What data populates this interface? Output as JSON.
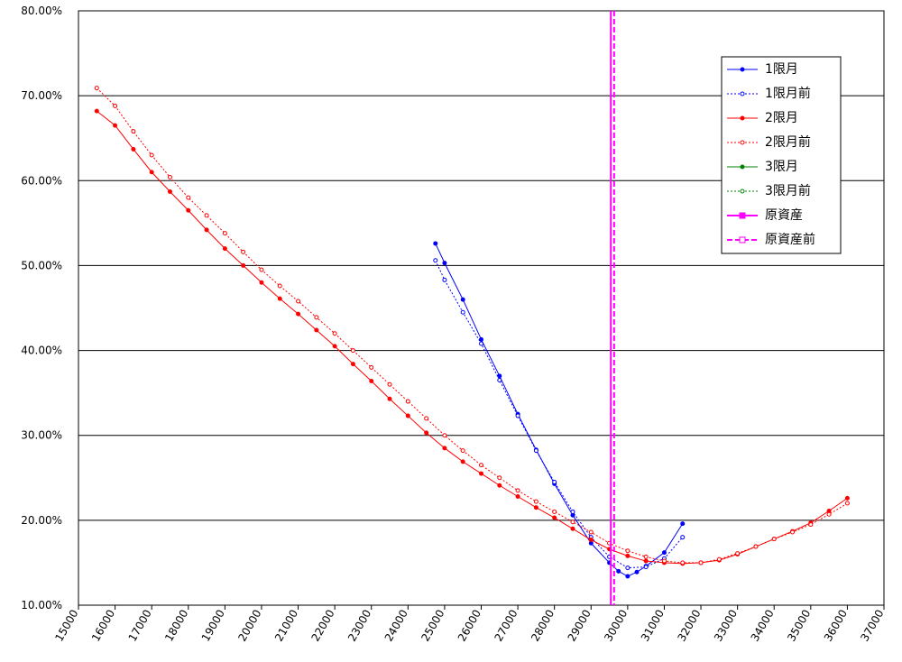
{
  "chart_data": {
    "type": "line",
    "xlim": [
      15000,
      37000
    ],
    "xticks": [
      15000,
      16000,
      17000,
      18000,
      19000,
      20000,
      21000,
      22000,
      23000,
      24000,
      25000,
      26000,
      27000,
      28000,
      29000,
      30000,
      31000,
      32000,
      33000,
      34000,
      35000,
      36000,
      37000
    ],
    "ylim": [
      10,
      80
    ],
    "yticks": [
      {
        "value": 10,
        "label": "10.00%"
      },
      {
        "value": 20,
        "label": "20.00%"
      },
      {
        "value": 30,
        "label": "30.00%"
      },
      {
        "value": 40,
        "label": "40.00%"
      },
      {
        "value": 50,
        "label": "50.00%"
      },
      {
        "value": 60,
        "label": "60.00%"
      },
      {
        "value": 70,
        "label": "70.00%"
      },
      {
        "value": 80,
        "label": "80.00%"
      }
    ],
    "grid": true,
    "legend": "upper-right",
    "series": [
      {
        "name": "1限月",
        "color": "#0000ff",
        "dashed": false,
        "x": [
          24750,
          25000,
          25500,
          26000,
          26500,
          27000,
          27500,
          28000,
          28500,
          29000,
          29500,
          29750,
          30000,
          30250,
          30500,
          31000,
          31500
        ],
        "values": [
          52.6,
          50.3,
          46.0,
          41.3,
          37.0,
          32.5,
          28.3,
          24.3,
          20.6,
          17.3,
          15.0,
          14.0,
          13.4,
          13.9,
          14.6,
          16.2,
          19.6
        ]
      },
      {
        "name": "1限月前",
        "color": "#0000ff",
        "dashed": true,
        "x": [
          24750,
          25000,
          25500,
          26000,
          26500,
          27000,
          27500,
          28000,
          28500,
          29000,
          29500,
          30000,
          30500,
          31000,
          31500
        ],
        "values": [
          50.6,
          48.3,
          44.5,
          40.8,
          36.5,
          32.3,
          28.2,
          24.5,
          21.0,
          18.0,
          15.7,
          14.4,
          14.5,
          15.5,
          18.0
        ]
      },
      {
        "name": "2限月",
        "color": "#ff0000",
        "dashed": false,
        "x": [
          15500,
          16000,
          16500,
          17000,
          17500,
          18000,
          18500,
          19000,
          19500,
          20000,
          20500,
          21000,
          21500,
          22000,
          22500,
          23000,
          23500,
          24000,
          24500,
          25000,
          25500,
          26000,
          26500,
          27000,
          27500,
          28000,
          28500,
          29000,
          29500,
          30000,
          30500,
          31000,
          31500,
          32000,
          32500,
          33000,
          33500,
          34000,
          34500,
          35000,
          35500,
          36000
        ],
        "values": [
          68.2,
          66.5,
          63.7,
          61.0,
          58.7,
          56.5,
          54.2,
          52.0,
          50.0,
          48.0,
          46.1,
          44.3,
          42.4,
          40.5,
          38.4,
          36.4,
          34.3,
          32.3,
          30.3,
          28.5,
          26.9,
          25.5,
          24.1,
          22.8,
          21.5,
          20.3,
          19.0,
          17.7,
          16.6,
          15.8,
          15.2,
          15.0,
          14.9,
          15.0,
          15.3,
          16.0,
          16.9,
          17.8,
          18.7,
          19.7,
          21.1,
          22.6
        ]
      },
      {
        "name": "2限月前",
        "color": "#ff0000",
        "dashed": true,
        "x": [
          15500,
          16000,
          16500,
          17000,
          17500,
          18000,
          18500,
          19000,
          19500,
          20000,
          20500,
          21000,
          21500,
          22000,
          22500,
          23000,
          23500,
          24000,
          24500,
          25000,
          25500,
          26000,
          26500,
          27000,
          27500,
          28000,
          28500,
          29000,
          29500,
          30000,
          30500,
          31000,
          31500,
          32000,
          32500,
          33000,
          33500,
          34000,
          34500,
          35000,
          35500,
          36000
        ],
        "values": [
          70.9,
          68.8,
          65.8,
          63.0,
          60.4,
          58.0,
          55.9,
          53.8,
          51.6,
          49.5,
          47.6,
          45.8,
          43.9,
          42.0,
          40.0,
          38.0,
          36.0,
          34.0,
          32.0,
          30.0,
          28.2,
          26.5,
          25.0,
          23.5,
          22.2,
          21.0,
          19.8,
          18.6,
          17.3,
          16.4,
          15.7,
          15.2,
          15.0,
          15.0,
          15.4,
          16.1,
          16.9,
          17.8,
          18.6,
          19.5,
          20.7,
          22.0
        ]
      },
      {
        "name": "3限月",
        "color": "#008000",
        "dashed": false,
        "x": [],
        "values": []
      },
      {
        "name": "3限月前",
        "color": "#008000",
        "dashed": true,
        "x": [],
        "values": []
      },
      {
        "name": "原資産",
        "color": "#ff00ff",
        "dashed": false,
        "vline": 29540
      },
      {
        "name": "原資産前",
        "color": "#ff00ff",
        "dashed": true,
        "vline": 29630
      }
    ]
  }
}
